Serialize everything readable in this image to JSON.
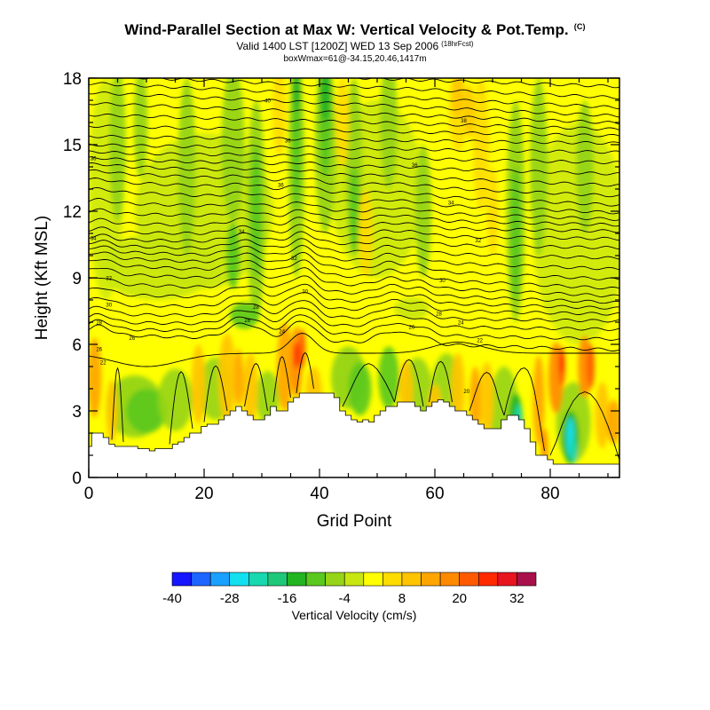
{
  "header": {
    "title": "Wind-Parallel Section at Max W: Vertical Velocity & Pot.Temp.",
    "title_mark": "(C)",
    "subtitle": "Valid 1400 LST [1200Z] WED 13 Sep 2006",
    "subtitle_mark": "(18hrFcst)",
    "boxline": "boxWmax=61@-34.15,20.46,1417m"
  },
  "chart_data": {
    "type": "heatmap",
    "title": "Wind-Parallel Section at Max W: Vertical Velocity & Pot.Temp.",
    "xlabel": "Grid Point",
    "ylabel": "Height (Kft MSL)",
    "xlim": [
      0,
      92
    ],
    "ylim": [
      0,
      18
    ],
    "x_ticks": [
      "0",
      "20",
      "40",
      "60",
      "80"
    ],
    "y_ticks": [
      "0",
      "3",
      "6",
      "9",
      "12",
      "15",
      "18"
    ],
    "colorbar": {
      "label": "Vertical Velocity (cm/s)",
      "tick_labels": [
        "-40",
        "-28",
        "-16",
        "-4",
        "8",
        "20",
        "32"
      ],
      "colors": [
        "#1515ff",
        "#1e64ff",
        "#1aa0ff",
        "#12e0f0",
        "#18d8b0",
        "#1ec878",
        "#22b422",
        "#5ac81e",
        "#96d418",
        "#c8e612",
        "#ffff00",
        "#ffdc00",
        "#ffc400",
        "#ffa500",
        "#ff8a00",
        "#ff5a00",
        "#ff2a00",
        "#e8141e",
        "#a8104a"
      ]
    },
    "terrain_kft": [
      1.4,
      2.0,
      2.0,
      1.8,
      1.5,
      1.4,
      1.4,
      1.4,
      1.4,
      1.3,
      1.3,
      1.2,
      1.3,
      1.3,
      1.3,
      1.5,
      1.6,
      1.8,
      2.0,
      2.0,
      2.3,
      2.4,
      2.4,
      2.6,
      2.8,
      3.0,
      3.2,
      3.0,
      2.8,
      2.6,
      2.6,
      2.8,
      3.2,
      3.0,
      3.0,
      3.4,
      3.6,
      3.8,
      3.8,
      3.8,
      3.8,
      3.8,
      3.8,
      3.6,
      3.0,
      2.8,
      2.6,
      2.5,
      2.6,
      2.5,
      2.8,
      3.0,
      3.2,
      3.2,
      3.4,
      3.4,
      3.4,
      3.2,
      3.0,
      3.2,
      3.4,
      3.5,
      3.4,
      3.2,
      3.0,
      3.0,
      2.8,
      2.6,
      2.4,
      2.2,
      2.2,
      2.2,
      2.6,
      2.8,
      2.8,
      2.6,
      2.2,
      1.6,
      1.0,
      1.0,
      0.8,
      0.6,
      0.6,
      0.6,
      0.6,
      0.6,
      0.6,
      0.6,
      0.6,
      0.6,
      0.6,
      0.6,
      0.6
    ],
    "isentrope_labels": [
      {
        "x": 31,
        "y": 17.0,
        "text": "40"
      },
      {
        "x": 65,
        "y": 16.1,
        "text": "38"
      },
      {
        "x": 0.8,
        "y": 14.4,
        "text": "36"
      },
      {
        "x": 34.5,
        "y": 15.2,
        "text": "36"
      },
      {
        "x": 56.5,
        "y": 14.1,
        "text": "36"
      },
      {
        "x": 33.3,
        "y": 13.2,
        "text": "36"
      },
      {
        "x": 62.8,
        "y": 12.4,
        "text": "34"
      },
      {
        "x": 26.5,
        "y": 11.1,
        "text": "34"
      },
      {
        "x": 0.8,
        "y": 10.8,
        "text": "34"
      },
      {
        "x": 67.5,
        "y": 10.7,
        "text": "32"
      },
      {
        "x": 35.6,
        "y": 9.9,
        "text": "32"
      },
      {
        "x": 3.5,
        "y": 9.0,
        "text": "32"
      },
      {
        "x": 61.3,
        "y": 8.9,
        "text": "30"
      },
      {
        "x": 37.5,
        "y": 8.4,
        "text": "30"
      },
      {
        "x": 3.5,
        "y": 7.8,
        "text": "30"
      },
      {
        "x": 29,
        "y": 7.7,
        "text": "28"
      },
      {
        "x": 60.7,
        "y": 7.4,
        "text": "28"
      },
      {
        "x": 27.5,
        "y": 7.1,
        "text": "26"
      },
      {
        "x": 64.5,
        "y": 7.0,
        "text": "24"
      },
      {
        "x": 56,
        "y": 6.8,
        "text": "26"
      },
      {
        "x": 1.8,
        "y": 7.0,
        "text": "28"
      },
      {
        "x": 33.5,
        "y": 6.6,
        "text": "24"
      },
      {
        "x": 7.5,
        "y": 6.3,
        "text": "26"
      },
      {
        "x": 67.8,
        "y": 6.2,
        "text": "22"
      },
      {
        "x": 1.8,
        "y": 5.8,
        "text": "26"
      },
      {
        "x": 2.5,
        "y": 5.2,
        "text": "22"
      },
      {
        "x": 65.5,
        "y": 3.9,
        "text": "20"
      }
    ]
  }
}
